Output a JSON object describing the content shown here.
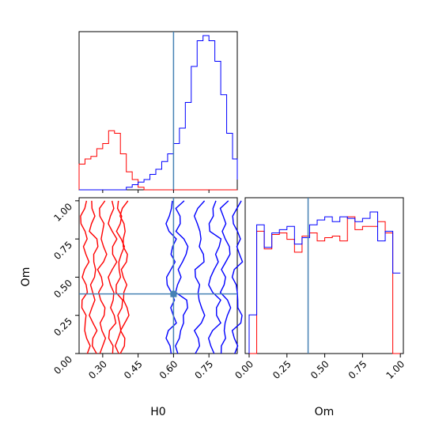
{
  "chart_data": {
    "type": "corner",
    "parameters": [
      "H0",
      "Om"
    ],
    "truths": {
      "H0": 0.6,
      "Om": 0.39
    },
    "series": [
      {
        "color": "#ff0000",
        "H0_hist": {
          "edges_range": [
            0.15,
            0.9
          ],
          "bins": 30,
          "counts": [
            2,
            5,
            10,
            12,
            13,
            16,
            18,
            23,
            22,
            14,
            7,
            4,
            1,
            0,
            0,
            0,
            0,
            0,
            0,
            0,
            0,
            0,
            0,
            0,
            0,
            0,
            0,
            0,
            0,
            0
          ]
        },
        "Om_hist": {
          "edges_range": [
            0.0,
            1.0
          ],
          "bins": 20,
          "counts": [
            0,
            76,
            65,
            74,
            75,
            71,
            63,
            73,
            75,
            70,
            72,
            73,
            70,
            85,
            77,
            79,
            79,
            82,
            75,
            0
          ]
        },
        "contour_bands_H0": [
          [
            0.235,
            0.265,
            0.3,
            0.335,
            0.365,
            0.385
          ],
          [
            0.22,
            0.255,
            0.3,
            0.345,
            0.375,
            0.4
          ],
          [
            0.225,
            0.26,
            0.29,
            0.335,
            0.365,
            0.39
          ],
          [
            0.23,
            0.27,
            0.305,
            0.35,
            0.38,
            0.395
          ],
          [
            0.215,
            0.255,
            0.295,
            0.335,
            0.37,
            0.385
          ],
          [
            0.225,
            0.265,
            0.3,
            0.34,
            0.375,
            0.395
          ]
        ],
        "contour_Om_levels": [
          0.0,
          0.2,
          0.4,
          0.6,
          0.8,
          1.0
        ]
      },
      {
        "color": "#0000ff",
        "H0_hist": {
          "edges_range": [
            0.15,
            0.9
          ],
          "bins": 30,
          "counts": [
            0,
            0,
            0,
            0,
            0,
            0,
            0,
            0,
            0,
            0,
            1,
            2,
            3,
            4,
            6,
            8,
            11,
            14,
            18,
            24,
            34,
            48,
            58,
            60,
            58,
            50,
            37,
            22,
            12,
            4
          ]
        },
        "Om_hist": {
          "edges_range": [
            0.0,
            1.0
          ],
          "bins": 20,
          "counts": [
            24,
            80,
            66,
            75,
            77,
            79,
            68,
            72,
            80,
            83,
            85,
            82,
            85,
            84,
            82,
            84,
            88,
            70,
            76,
            50
          ]
        },
        "contour_bands_H0": [
          [
            0.58,
            0.62,
            0.7,
            0.76,
            0.81,
            0.86
          ],
          [
            0.6,
            0.65,
            0.72,
            0.79,
            0.83,
            0.88
          ]
        ],
        "contour_Om_levels": [
          0.0,
          0.2,
          0.4,
          0.6,
          0.8,
          1.0
        ]
      }
    ],
    "xlabel_H0": "H0",
    "xlabel_Om": "Om",
    "ylabel_Om": "Om",
    "H0_ticks": [
      "0.30",
      "0.45",
      "0.60",
      "0.75"
    ],
    "H0_tick_values": [
      0.3,
      0.45,
      0.6,
      0.75
    ],
    "Om_ticks": [
      "0.00",
      "0.25",
      "0.50",
      "0.75",
      "1.00"
    ],
    "Om_tick_values": [
      0.0,
      0.25,
      0.5,
      0.75,
      1.0
    ],
    "H0_range": [
      0.2,
      0.87
    ],
    "Om_range": [
      0.0,
      1.02
    ],
    "truth_color": "#4682b4",
    "grid": false
  }
}
